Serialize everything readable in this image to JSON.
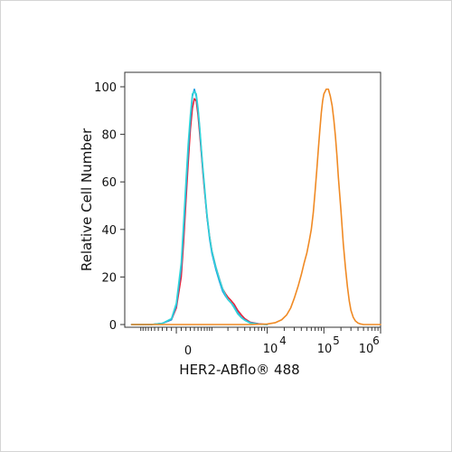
{
  "chart_data": {
    "type": "line",
    "title": "",
    "xlabel": "HER2-ABflo® 488",
    "ylabel": "Relative Cell Number",
    "x_scale": "logicle",
    "xlim": [
      -2000,
      1000000
    ],
    "ylim": [
      0,
      100
    ],
    "grid": false,
    "legend": "none",
    "y_ticks": [
      0,
      20,
      40,
      60,
      80,
      100
    ],
    "x_tick_labels": [
      "0",
      "10",
      "4",
      "10",
      "5",
      "10",
      "6"
    ],
    "series": [
      {
        "color": "#e8233a",
        "x": [
          -1500,
          -1000,
          -600,
          -300,
          -100,
          0,
          100,
          150,
          200,
          250,
          300,
          350,
          400,
          450,
          500,
          550,
          600,
          650,
          700,
          750,
          800,
          900,
          1000,
          1200,
          1400,
          1600,
          1800,
          2000,
          2300,
          2600,
          3000,
          3500,
          4000,
          5000,
          7000,
          10000
        ],
        "y": [
          0,
          0,
          0,
          0.5,
          2,
          7,
          20,
          35,
          52,
          68,
          82,
          91,
          95,
          94,
          88,
          80,
          72,
          64,
          57,
          51,
          45,
          37,
          31,
          24,
          19,
          15,
          13,
          11.5,
          10,
          8.5,
          6,
          4,
          2.5,
          1,
          0.3,
          0
        ]
      },
      {
        "color": "#1f9fe0",
        "x": [
          -1500,
          -1000,
          -600,
          -300,
          -100,
          0,
          100,
          150,
          200,
          250,
          300,
          350,
          400,
          450,
          500,
          550,
          600,
          650,
          700,
          750,
          800,
          900,
          1000,
          1200,
          1400,
          1600,
          1800,
          2000,
          2300,
          2600,
          3000,
          3500,
          4000,
          5000,
          7000,
          10000
        ],
        "y": [
          0,
          0,
          0,
          0.5,
          2,
          8,
          24,
          40,
          57,
          73,
          86,
          96,
          99,
          96,
          90,
          82,
          73,
          65,
          58,
          51,
          45,
          36,
          30,
          23,
          18,
          14,
          12,
          10.5,
          9,
          7.5,
          5,
          3,
          2,
          0.8,
          0.2,
          0
        ]
      },
      {
        "color": "#33d3d8",
        "x": [
          -1500,
          -1000,
          -600,
          -300,
          -100,
          0,
          100,
          150,
          200,
          250,
          300,
          350,
          400,
          450,
          500,
          550,
          600,
          650,
          700,
          750,
          800,
          900,
          1000,
          1200,
          1400,
          1600,
          1800,
          2000,
          2300,
          2600,
          3000,
          3500,
          4000,
          5000,
          7000,
          10000
        ],
        "y": [
          0,
          0,
          0,
          0.5,
          2.5,
          9,
          26,
          43,
          60,
          76,
          88,
          97,
          98,
          97,
          91,
          83,
          74,
          66,
          59,
          52,
          46,
          37,
          31,
          24,
          19,
          15,
          12.5,
          10.5,
          9,
          7,
          4.5,
          2.8,
          1.8,
          0.6,
          0.1,
          0
        ]
      },
      {
        "color": "#f08a24",
        "x": [
          -1500,
          5000,
          10000,
          14000,
          18000,
          22000,
          26000,
          30000,
          35000,
          40000,
          45000,
          50000,
          55000,
          60000,
          65000,
          70000,
          75000,
          80000,
          85000,
          90000,
          95000,
          100000,
          105000,
          110000,
          120000,
          130000,
          140000,
          150000,
          160000,
          170000,
          180000,
          200000,
          220000,
          240000,
          260000,
          280000,
          300000,
          330000,
          360000,
          400000,
          450000,
          500000,
          600000,
          800000,
          1000000
        ],
        "y": [
          0,
          0,
          0.2,
          0.8,
          2,
          4,
          7,
          11,
          16,
          21,
          26,
          30,
          35,
          40,
          47,
          56,
          65,
          74,
          82,
          89,
          94,
          97,
          98,
          99,
          99,
          96,
          92,
          86,
          79,
          71,
          62,
          48,
          34,
          24,
          16,
          10,
          6,
          3,
          1.5,
          0.6,
          0.2,
          0,
          0,
          0,
          0
        ]
      }
    ]
  }
}
